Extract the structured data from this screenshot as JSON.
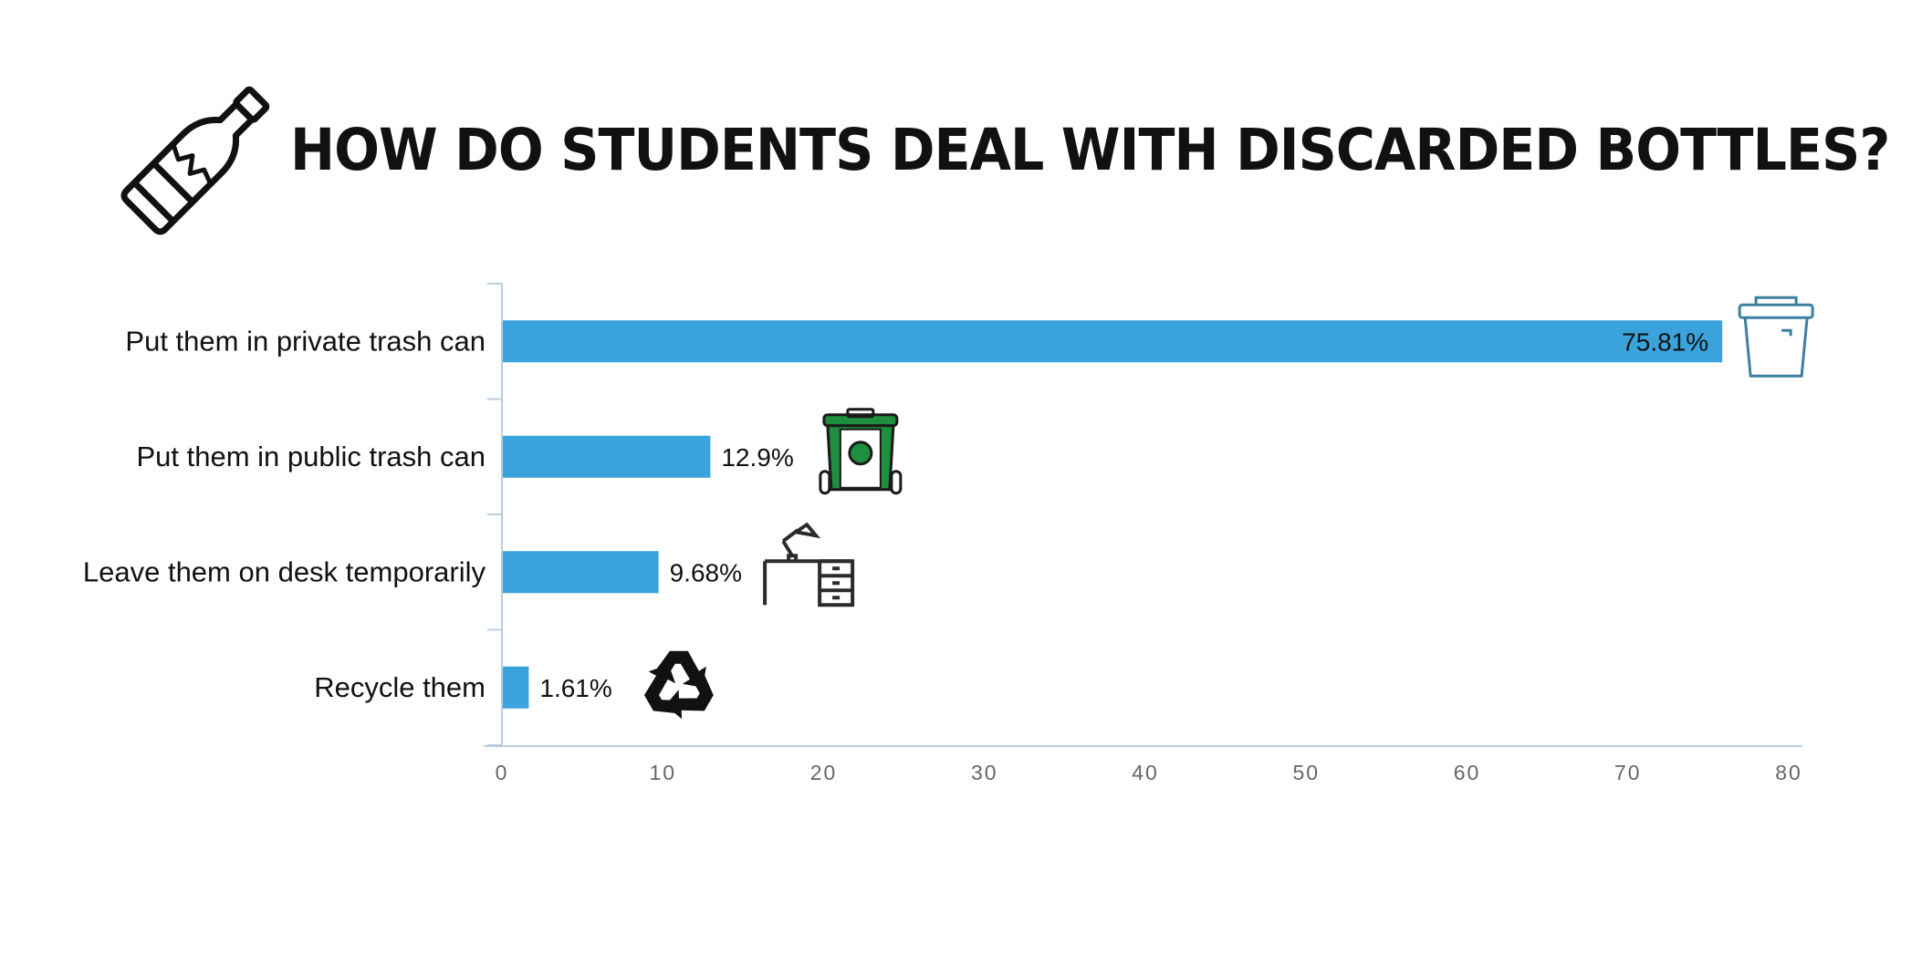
{
  "title": "HOW DO STUDENTS DEAL WITH DISCARDED BOTTLES?",
  "chart_data": {
    "type": "bar",
    "orientation": "horizontal",
    "categories": [
      "Put them in private trash can",
      "Put them in public trash can",
      "Leave them on desk temporarily",
      "Recycle them"
    ],
    "values": [
      75.81,
      12.9,
      9.68,
      1.61
    ],
    "value_labels": [
      "75.81%",
      "12.9%",
      "9.68%",
      "1.61%"
    ],
    "xlim": [
      0,
      80
    ],
    "xticks": [
      0,
      10,
      20,
      30,
      40,
      50,
      60,
      70,
      80
    ],
    "icons": [
      "private-trash-bin-icon",
      "public-trash-bin-icon",
      "desk-lamp-icon",
      "recycle-icon"
    ],
    "bar_color": "#3aa3dc",
    "axis_color": "#b9cde0",
    "tick_label_color": "#666666",
    "grid": false,
    "legend": "none"
  },
  "header_icon": "broken-bottle-icon"
}
